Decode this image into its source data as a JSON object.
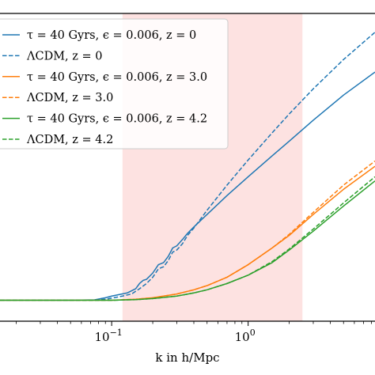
{
  "chart_data": {
    "type": "line",
    "title": "",
    "xlabel": "k in h/Mpc",
    "ylabel": "",
    "xscale": "log",
    "xlim": [
      0.0152,
      8.5
    ],
    "ylim": [
      0.9,
      2.37
    ],
    "x_ticks": [
      {
        "value": 0.1,
        "label": "10^-1",
        "base": "10",
        "exp": "−1"
      },
      {
        "value": 1,
        "label": "10^0",
        "base": "10",
        "exp": "0"
      }
    ],
    "shaded_region": {
      "x": [
        0.12,
        2.5
      ],
      "color": "#fde2e1"
    },
    "legend": {
      "position": "upper-left"
    },
    "colors": {
      "blue": "#1f77b4",
      "orange": "#ff7f0e",
      "green": "#2ca02c"
    },
    "series": [
      {
        "name": "τ = 40 Gyrs, ϵ = 0.006, z = 0",
        "color": "#1f77b4",
        "style": "solid",
        "points": [
          [
            0.0152,
            1.0
          ],
          [
            0.05,
            1.0
          ],
          [
            0.075,
            1.002
          ],
          [
            0.09,
            1.012
          ],
          [
            0.1,
            1.02
          ],
          [
            0.115,
            1.028
          ],
          [
            0.13,
            1.035
          ],
          [
            0.15,
            1.055
          ],
          [
            0.16,
            1.08
          ],
          [
            0.17,
            1.095
          ],
          [
            0.18,
            1.1
          ],
          [
            0.2,
            1.13
          ],
          [
            0.22,
            1.17
          ],
          [
            0.24,
            1.18
          ],
          [
            0.26,
            1.21
          ],
          [
            0.28,
            1.25
          ],
          [
            0.3,
            1.26
          ],
          [
            0.33,
            1.29
          ],
          [
            0.36,
            1.32
          ],
          [
            0.4,
            1.35
          ],
          [
            0.5,
            1.41
          ],
          [
            0.7,
            1.5
          ],
          [
            1.0,
            1.59
          ],
          [
            1.5,
            1.69
          ],
          [
            2.0,
            1.76
          ],
          [
            3.0,
            1.86
          ],
          [
            5.0,
            1.98
          ],
          [
            8.5,
            2.09
          ]
        ]
      },
      {
        "name": "ΛCDM, z = 0",
        "color": "#1f77b4",
        "style": "dashed",
        "points": [
          [
            0.0152,
            1.0
          ],
          [
            0.05,
            1.0
          ],
          [
            0.075,
            1.0
          ],
          [
            0.09,
            1.005
          ],
          [
            0.1,
            1.01
          ],
          [
            0.12,
            1.02
          ],
          [
            0.14,
            1.03
          ],
          [
            0.16,
            1.055
          ],
          [
            0.18,
            1.08
          ],
          [
            0.2,
            1.11
          ],
          [
            0.22,
            1.15
          ],
          [
            0.24,
            1.16
          ],
          [
            0.26,
            1.19
          ],
          [
            0.28,
            1.23
          ],
          [
            0.3,
            1.24
          ],
          [
            0.33,
            1.27
          ],
          [
            0.36,
            1.31
          ],
          [
            0.4,
            1.345
          ],
          [
            0.5,
            1.43
          ],
          [
            0.7,
            1.55
          ],
          [
            1.0,
            1.67
          ],
          [
            1.5,
            1.8
          ],
          [
            2.0,
            1.89
          ],
          [
            3.0,
            2.01
          ],
          [
            5.0,
            2.15
          ],
          [
            8.5,
            2.28
          ]
        ]
      },
      {
        "name": "τ = 40 Gyrs, ϵ = 0.006, z = 3.0",
        "color": "#ff7f0e",
        "style": "solid",
        "points": [
          [
            0.0152,
            1.0
          ],
          [
            0.1,
            1.0
          ],
          [
            0.15,
            1.005
          ],
          [
            0.2,
            1.012
          ],
          [
            0.3,
            1.03
          ],
          [
            0.4,
            1.05
          ],
          [
            0.5,
            1.07
          ],
          [
            0.7,
            1.11
          ],
          [
            1.0,
            1.17
          ],
          [
            1.5,
            1.25
          ],
          [
            2.0,
            1.31
          ],
          [
            3.0,
            1.41
          ],
          [
            5.0,
            1.53
          ],
          [
            8.5,
            1.64
          ]
        ]
      },
      {
        "name": "ΛCDM, z = 3.0",
        "color": "#ff7f0e",
        "style": "dashed",
        "points": [
          [
            0.0152,
            1.0
          ],
          [
            0.1,
            1.0
          ],
          [
            0.15,
            1.005
          ],
          [
            0.2,
            1.012
          ],
          [
            0.3,
            1.03
          ],
          [
            0.4,
            1.05
          ],
          [
            0.5,
            1.07
          ],
          [
            0.7,
            1.11
          ],
          [
            1.0,
            1.17
          ],
          [
            1.5,
            1.25
          ],
          [
            2.0,
            1.315
          ],
          [
            3.0,
            1.42
          ],
          [
            5.0,
            1.55
          ],
          [
            8.5,
            1.665
          ]
        ]
      },
      {
        "name": "τ = 40 Gyrs, ϵ = 0.006, z = 4.2",
        "color": "#2ca02c",
        "style": "solid",
        "points": [
          [
            0.0152,
            1.0
          ],
          [
            0.1,
            1.0
          ],
          [
            0.15,
            1.003
          ],
          [
            0.2,
            1.008
          ],
          [
            0.3,
            1.02
          ],
          [
            0.4,
            1.035
          ],
          [
            0.5,
            1.05
          ],
          [
            0.7,
            1.08
          ],
          [
            1.0,
            1.12
          ],
          [
            1.5,
            1.18
          ],
          [
            2.0,
            1.24
          ],
          [
            3.0,
            1.33
          ],
          [
            5.0,
            1.45
          ],
          [
            8.5,
            1.57
          ]
        ]
      },
      {
        "name": "ΛCDM, z = 4.2",
        "color": "#2ca02c",
        "style": "dashed",
        "points": [
          [
            0.0152,
            1.0
          ],
          [
            0.1,
            1.0
          ],
          [
            0.15,
            1.003
          ],
          [
            0.2,
            1.008
          ],
          [
            0.3,
            1.02
          ],
          [
            0.4,
            1.035
          ],
          [
            0.5,
            1.05
          ],
          [
            0.7,
            1.08
          ],
          [
            1.0,
            1.12
          ],
          [
            1.5,
            1.185
          ],
          [
            2.0,
            1.245
          ],
          [
            3.0,
            1.34
          ],
          [
            5.0,
            1.465
          ],
          [
            8.5,
            1.59
          ]
        ]
      }
    ]
  }
}
